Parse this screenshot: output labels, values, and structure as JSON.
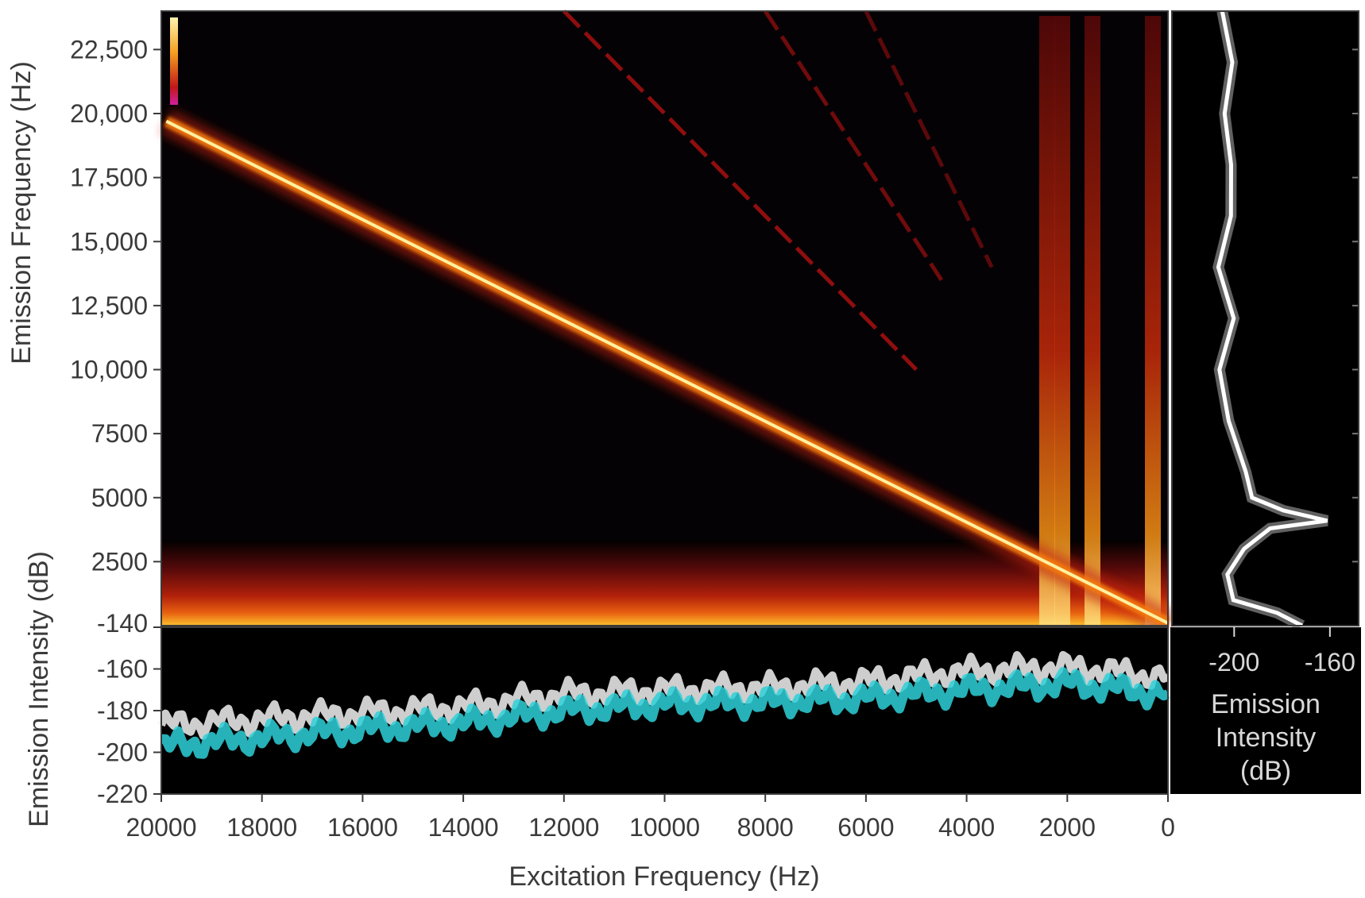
{
  "chart_data": [
    {
      "id": "spectrogram",
      "type": "heatmap",
      "title": "",
      "xlabel": "Excitation Frequency (Hz)",
      "ylabel": "Emission Frequency (Hz)",
      "x_reversed": true,
      "xlim": [
        20000,
        0
      ],
      "ylim": [
        0,
        24000
      ],
      "x_ticks": [
        20000,
        18000,
        16000,
        14000,
        12000,
        10000,
        8000,
        6000,
        4000,
        2000,
        0
      ],
      "x_tick_labels": [
        "20000",
        "18000",
        "16000",
        "14000",
        "12000",
        "10000",
        "8000",
        "6000",
        "4000",
        "2000",
        "0"
      ],
      "y_ticks": [
        22500,
        20000,
        17500,
        15000,
        12500,
        10000,
        7500,
        5000,
        2500
      ],
      "y_tick_labels": [
        "22,500",
        "20,000",
        "17,500",
        "15,000",
        "12,500",
        "10,000",
        "7500",
        "5000",
        "2500"
      ],
      "colormap": [
        "#000000",
        "#3a0608",
        "#8b0a0a",
        "#d42a0a",
        "#f57a10",
        "#fbc02d",
        "#fff3b0"
      ],
      "features": [
        {
          "name": "fundamental",
          "from": [
            19900,
            19700
          ],
          "to": [
            0,
            100
          ],
          "intensity": 1.0
        },
        {
          "name": "harmonic-2",
          "from": [
            12000,
            24000
          ],
          "to": [
            5000,
            10000
          ],
          "intensity": 0.45
        },
        {
          "name": "harmonic-3",
          "from": [
            8000,
            24000
          ],
          "to": [
            4500,
            13500
          ],
          "intensity": 0.35
        },
        {
          "name": "harmonic-4",
          "from": [
            6000,
            24000
          ],
          "to": [
            3500,
            14000
          ],
          "intensity": 0.28
        }
      ],
      "vertical_bands_hz": [
        2400,
        2100,
        1500,
        300
      ],
      "low_band_hz": [
        0,
        2800
      ]
    },
    {
      "id": "excitation-intensity",
      "type": "scatter",
      "title": "",
      "xlabel": "Excitation Frequency (Hz)",
      "ylabel": "Emission Intensity (dB)",
      "xlim": [
        20000,
        0
      ],
      "ylim": [
        -220,
        -140
      ],
      "y_ticks": [
        -140,
        -160,
        -180,
        -200,
        -220
      ],
      "y_tick_labels": [
        "-140",
        "-160",
        "-180",
        "-200",
        "-220"
      ],
      "series": [
        {
          "color": "#f2f2f2",
          "x": [
            20000,
            18000,
            16000,
            14000,
            12000,
            10000,
            8000,
            6000,
            4000,
            2000,
            0
          ],
          "values": [
            -187,
            -184,
            -181,
            -178,
            -172,
            -170,
            -169,
            -166,
            -161,
            -159,
            -164
          ]
        },
        {
          "color": "#2ed0d8",
          "x": [
            20000,
            18000,
            16000,
            14000,
            12000,
            10000,
            8000,
            6000,
            4000,
            2000,
            0
          ],
          "values": [
            -197,
            -193,
            -189,
            -186,
            -180,
            -177,
            -176,
            -174,
            -170,
            -167,
            -172
          ]
        }
      ]
    },
    {
      "id": "emission-profile",
      "type": "line",
      "title": "",
      "xlabel": "Emission Intensity (dB)",
      "ylabel": "",
      "xlim": [
        -226,
        -148
      ],
      "x_ticks": [
        -200,
        -160
      ],
      "x_tick_labels": [
        "-200",
        "-160"
      ],
      "ylim": [
        0,
        24000
      ],
      "series": [
        {
          "color": "#ffffff",
          "y": [
            24000,
            22000,
            20000,
            18000,
            16000,
            14000,
            12000,
            10000,
            8000,
            6000,
            5000,
            4500,
            4100,
            3800,
            3000,
            2000,
            1000,
            500,
            0
          ],
          "values": [
            -205,
            -203,
            -201,
            -203,
            -202,
            -204,
            -203,
            -205,
            -201,
            -198,
            -190,
            -180,
            -163,
            -182,
            -198,
            -203,
            -198,
            -185,
            -170
          ]
        }
      ]
    }
  ],
  "labels": {
    "x_axis": "Excitation Frequency (Hz)",
    "y_axis_top": "Emission Frequency (Hz)",
    "y_axis_bottom": "Emission Intensity (dB)",
    "y_bottom_first_tick": "-140",
    "right_axis_line1": "Emission",
    "right_axis_line2": "Intensity",
    "right_axis_line3": "(dB)"
  }
}
